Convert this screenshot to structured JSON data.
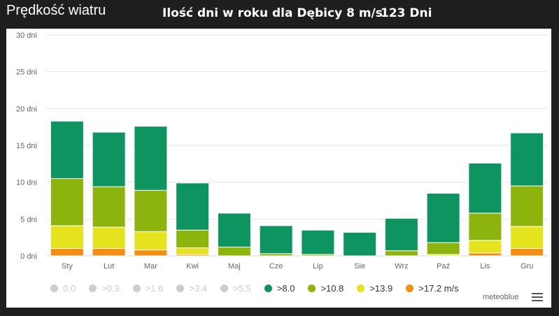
{
  "header": {
    "title": "Prędkość wiatru",
    "subtitle": "Ilość dni w roku dla Dębicy 8 m/s",
    "total": "123 Dni"
  },
  "brand": "meteoblue",
  "chart_data": {
    "type": "bar",
    "stacked": true,
    "categories": [
      "Sty",
      "Lut",
      "Mar",
      "Kwi",
      "Maj",
      "Cze",
      "Lip",
      "Sie",
      "Wrz",
      "Paź",
      "Lis",
      "Gru"
    ],
    "ylim": [
      0,
      30
    ],
    "yticks": [
      "0 dni",
      "5 dni",
      "10 dni",
      "15 dni",
      "20 dni",
      "25 dni",
      "30 dni"
    ],
    "grid": true,
    "legend_position": "bottom",
    "series": [
      {
        "name": ">17.2 m/s",
        "color": "#f28f13",
        "values": [
          1.0,
          1.0,
          0.8,
          0.2,
          0,
          0,
          0,
          0,
          0,
          0,
          0.4,
          1.0
        ]
      },
      {
        "name": ">13.9",
        "color": "#e5e31e",
        "values": [
          3.1,
          2.9,
          2.5,
          0.9,
          0,
          0,
          0,
          0,
          0,
          0.2,
          1.7,
          3.0
        ]
      },
      {
        "name": ">10.8",
        "color": "#8db40c",
        "values": [
          6.4,
          5.5,
          5.6,
          2.4,
          1.2,
          0.3,
          0.2,
          0,
          0.7,
          1.6,
          3.7,
          5.5
        ]
      },
      {
        "name": ">8.0",
        "color": "#0e9460",
        "values": [
          7.8,
          7.4,
          8.7,
          6.4,
          4.6,
          3.8,
          3.3,
          3.2,
          4.4,
          6.7,
          6.8,
          7.2
        ]
      }
    ],
    "legend": [
      {
        "label": "0.0",
        "color": "#cccccc",
        "active": false
      },
      {
        "label": ">0.3",
        "color": "#cccccc",
        "active": false
      },
      {
        "label": ">1.6",
        "color": "#cccccc",
        "active": false
      },
      {
        "label": ">3.4",
        "color": "#cccccc",
        "active": false
      },
      {
        "label": ">5.5",
        "color": "#cccccc",
        "active": false
      },
      {
        "label": ">8.0",
        "color": "#0e9460",
        "active": true
      },
      {
        "label": ">10.8",
        "color": "#8db40c",
        "active": true
      },
      {
        "label": ">13.9",
        "color": "#e5e31e",
        "active": true
      },
      {
        "label": ">17.2 m/s",
        "color": "#f28f13",
        "active": true
      }
    ]
  }
}
